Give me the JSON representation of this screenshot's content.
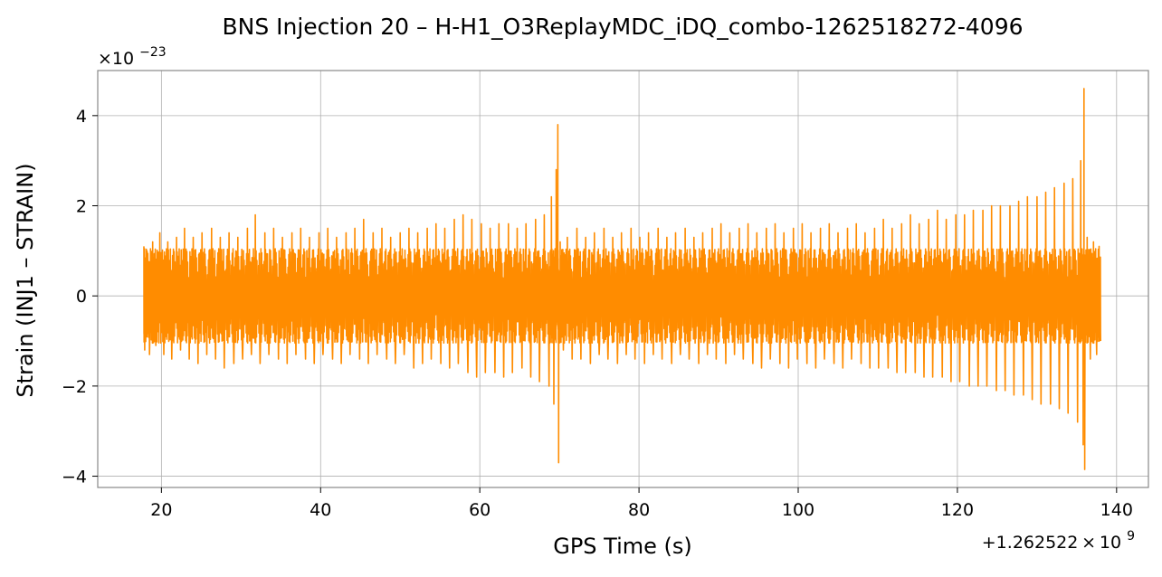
{
  "chart_data": {
    "type": "line",
    "title": "BNS Injection 20 – H-H1_O3ReplayMDC_iDQ_combo-1262518272-4096",
    "xlabel": "GPS Time (s)",
    "ylabel": "Strain (INJ1 – STRAIN)",
    "x_offset_label": "+1.262522 × 10",
    "x_offset_exponent": "9",
    "y_scale_label": "×10",
    "y_scale_exponent": "−23",
    "xlim": [
      12,
      144
    ],
    "ylim": [
      -4.25,
      5.0
    ],
    "x_ticks": [
      20,
      40,
      60,
      80,
      100,
      120,
      140
    ],
    "x_tick_labels": [
      "20",
      "40",
      "60",
      "80",
      "100",
      "120",
      "140"
    ],
    "y_ticks": [
      -4,
      -2,
      0,
      2,
      4
    ],
    "y_tick_labels": [
      "−4",
      "−2",
      "0",
      "2",
      "4"
    ],
    "grid": true,
    "color": "#ff8c00",
    "series": [
      {
        "values": [
          [
            17.8,
            1.1
          ],
          [
            17.9,
            -1.2
          ],
          [
            18.2,
            1.0
          ],
          [
            18.5,
            -1.3
          ],
          [
            18.9,
            1.2
          ],
          [
            19.3,
            -1.1
          ],
          [
            19.8,
            1.4
          ],
          [
            20.3,
            -1.3
          ],
          [
            20.8,
            1.2
          ],
          [
            21.3,
            -1.4
          ],
          [
            21.9,
            1.3
          ],
          [
            22.4,
            -1.2
          ],
          [
            22.9,
            1.5
          ],
          [
            23.5,
            -1.4
          ],
          [
            24.0,
            1.3
          ],
          [
            24.6,
            -1.5
          ],
          [
            25.1,
            1.4
          ],
          [
            25.7,
            -1.3
          ],
          [
            26.3,
            1.5
          ],
          [
            26.8,
            -1.4
          ],
          [
            27.4,
            1.3
          ],
          [
            27.9,
            -1.6
          ],
          [
            28.5,
            1.4
          ],
          [
            29.1,
            -1.5
          ],
          [
            29.6,
            1.3
          ],
          [
            30.2,
            -1.4
          ],
          [
            30.8,
            1.5
          ],
          [
            31.3,
            -1.3
          ],
          [
            31.8,
            1.8
          ],
          [
            32.4,
            -1.5
          ],
          [
            33.0,
            1.4
          ],
          [
            33.5,
            -1.3
          ],
          [
            34.1,
            1.5
          ],
          [
            34.7,
            -1.4
          ],
          [
            35.2,
            1.3
          ],
          [
            35.8,
            -1.5
          ],
          [
            36.4,
            1.4
          ],
          [
            36.9,
            -1.3
          ],
          [
            37.5,
            1.5
          ],
          [
            38.1,
            -1.4
          ],
          [
            38.6,
            1.3
          ],
          [
            39.2,
            -1.5
          ],
          [
            39.8,
            1.4
          ],
          [
            40.3,
            -1.3
          ],
          [
            40.9,
            1.5
          ],
          [
            41.5,
            -1.4
          ],
          [
            42.0,
            1.3
          ],
          [
            42.6,
            -1.5
          ],
          [
            43.2,
            1.4
          ],
          [
            43.7,
            -1.3
          ],
          [
            44.3,
            1.5
          ],
          [
            44.9,
            -1.4
          ],
          [
            45.4,
            1.7
          ],
          [
            46.0,
            -1.5
          ],
          [
            46.6,
            1.4
          ],
          [
            47.1,
            -1.3
          ],
          [
            47.7,
            1.5
          ],
          [
            48.3,
            -1.4
          ],
          [
            48.8,
            1.3
          ],
          [
            49.4,
            -1.5
          ],
          [
            50.0,
            1.4
          ],
          [
            50.5,
            -1.3
          ],
          [
            51.1,
            1.5
          ],
          [
            51.7,
            -1.6
          ],
          [
            52.2,
            1.4
          ],
          [
            52.8,
            -1.5
          ],
          [
            53.4,
            1.5
          ],
          [
            53.9,
            -1.4
          ],
          [
            54.5,
            1.6
          ],
          [
            55.1,
            -1.5
          ],
          [
            55.6,
            1.5
          ],
          [
            56.2,
            -1.6
          ],
          [
            56.8,
            1.7
          ],
          [
            57.3,
            -1.5
          ],
          [
            57.9,
            1.8
          ],
          [
            58.5,
            -1.7
          ],
          [
            59.0,
            1.7
          ],
          [
            59.6,
            -1.8
          ],
          [
            60.2,
            1.6
          ],
          [
            60.7,
            -1.7
          ],
          [
            61.3,
            1.5
          ],
          [
            61.9,
            -1.7
          ],
          [
            62.4,
            1.6
          ],
          [
            63.0,
            -1.8
          ],
          [
            63.6,
            1.6
          ],
          [
            64.1,
            -1.7
          ],
          [
            64.7,
            1.5
          ],
          [
            65.3,
            -1.6
          ],
          [
            65.8,
            1.6
          ],
          [
            66.4,
            -1.8
          ],
          [
            67.0,
            1.7
          ],
          [
            67.5,
            -1.9
          ],
          [
            68.1,
            1.8
          ],
          [
            68.7,
            -2.0
          ],
          [
            69.0,
            2.2
          ],
          [
            69.3,
            -2.4
          ],
          [
            69.6,
            2.8
          ],
          [
            69.8,
            3.8
          ],
          [
            69.9,
            -3.7
          ],
          [
            70.1,
            1.2
          ],
          [
            70.5,
            -1.2
          ],
          [
            71.0,
            1.3
          ],
          [
            71.6,
            -1.4
          ],
          [
            72.2,
            1.5
          ],
          [
            72.7,
            -1.4
          ],
          [
            73.3,
            1.3
          ],
          [
            73.9,
            -1.5
          ],
          [
            74.4,
            1.4
          ],
          [
            75.0,
            -1.3
          ],
          [
            75.6,
            1.5
          ],
          [
            76.1,
            -1.4
          ],
          [
            76.7,
            1.3
          ],
          [
            77.3,
            -1.5
          ],
          [
            77.8,
            1.4
          ],
          [
            78.4,
            -1.3
          ],
          [
            79.0,
            1.5
          ],
          [
            79.5,
            -1.4
          ],
          [
            80.1,
            1.3
          ],
          [
            80.7,
            -1.5
          ],
          [
            81.2,
            1.4
          ],
          [
            81.8,
            -1.3
          ],
          [
            82.4,
            1.5
          ],
          [
            82.9,
            -1.4
          ],
          [
            83.5,
            1.3
          ],
          [
            84.1,
            -1.5
          ],
          [
            84.6,
            1.4
          ],
          [
            85.2,
            -1.3
          ],
          [
            85.8,
            1.5
          ],
          [
            86.3,
            -1.4
          ],
          [
            86.9,
            1.3
          ],
          [
            87.5,
            -1.5
          ],
          [
            88.0,
            1.4
          ],
          [
            88.6,
            -1.3
          ],
          [
            89.2,
            1.5
          ],
          [
            89.7,
            -1.4
          ],
          [
            90.3,
            1.6
          ],
          [
            90.9,
            -1.5
          ],
          [
            91.4,
            1.4
          ],
          [
            92.0,
            -1.3
          ],
          [
            92.6,
            1.5
          ],
          [
            93.1,
            -1.4
          ],
          [
            93.7,
            1.6
          ],
          [
            94.3,
            -1.5
          ],
          [
            94.8,
            1.4
          ],
          [
            95.4,
            -1.6
          ],
          [
            96.0,
            1.5
          ],
          [
            96.5,
            -1.4
          ],
          [
            97.1,
            1.6
          ],
          [
            97.7,
            -1.5
          ],
          [
            98.2,
            1.4
          ],
          [
            98.8,
            -1.6
          ],
          [
            99.4,
            1.5
          ],
          [
            99.9,
            -1.4
          ],
          [
            100.5,
            1.6
          ],
          [
            101.1,
            -1.5
          ],
          [
            101.6,
            1.4
          ],
          [
            102.2,
            -1.6
          ],
          [
            102.8,
            1.5
          ],
          [
            103.3,
            -1.4
          ],
          [
            103.9,
            1.6
          ],
          [
            104.5,
            -1.5
          ],
          [
            105.0,
            1.4
          ],
          [
            105.6,
            -1.6
          ],
          [
            106.2,
            1.5
          ],
          [
            106.7,
            -1.4
          ],
          [
            107.3,
            1.6
          ],
          [
            107.9,
            -1.5
          ],
          [
            108.4,
            1.4
          ],
          [
            109.0,
            -1.6
          ],
          [
            109.6,
            1.5
          ],
          [
            110.1,
            -1.6
          ],
          [
            110.7,
            1.7
          ],
          [
            111.3,
            -1.6
          ],
          [
            111.8,
            1.5
          ],
          [
            112.4,
            -1.7
          ],
          [
            113.0,
            1.6
          ],
          [
            113.5,
            -1.7
          ],
          [
            114.1,
            1.8
          ],
          [
            114.7,
            -1.7
          ],
          [
            115.2,
            1.6
          ],
          [
            115.8,
            -1.8
          ],
          [
            116.4,
            1.7
          ],
          [
            116.9,
            -1.8
          ],
          [
            117.5,
            1.9
          ],
          [
            118.1,
            -1.8
          ],
          [
            118.6,
            1.7
          ],
          [
            119.2,
            -1.9
          ],
          [
            119.8,
            1.8
          ],
          [
            120.3,
            -1.9
          ],
          [
            120.9,
            1.8
          ],
          [
            121.5,
            -2.0
          ],
          [
            122.0,
            1.9
          ],
          [
            122.6,
            -2.0
          ],
          [
            123.2,
            1.9
          ],
          [
            123.7,
            -2.0
          ],
          [
            124.3,
            2.0
          ],
          [
            124.9,
            -2.1
          ],
          [
            125.4,
            2.0
          ],
          [
            126.0,
            -2.1
          ],
          [
            126.6,
            2.0
          ],
          [
            127.1,
            -2.2
          ],
          [
            127.7,
            2.1
          ],
          [
            128.3,
            -2.2
          ],
          [
            128.8,
            2.2
          ],
          [
            129.4,
            -2.3
          ],
          [
            130.0,
            2.2
          ],
          [
            130.5,
            -2.4
          ],
          [
            131.1,
            2.3
          ],
          [
            131.7,
            -2.4
          ],
          [
            132.2,
            2.4
          ],
          [
            132.8,
            -2.5
          ],
          [
            133.4,
            2.5
          ],
          [
            133.9,
            -2.6
          ],
          [
            134.5,
            2.6
          ],
          [
            135.1,
            -2.8
          ],
          [
            135.5,
            3.0
          ],
          [
            135.8,
            -3.3
          ],
          [
            135.9,
            4.6
          ],
          [
            136.0,
            -3.85
          ],
          [
            136.3,
            1.3
          ],
          [
            136.7,
            -1.4
          ],
          [
            137.1,
            1.2
          ],
          [
            137.5,
            -1.3
          ],
          [
            137.8,
            1.1
          ],
          [
            138.0,
            -1.0
          ]
        ]
      }
    ]
  }
}
